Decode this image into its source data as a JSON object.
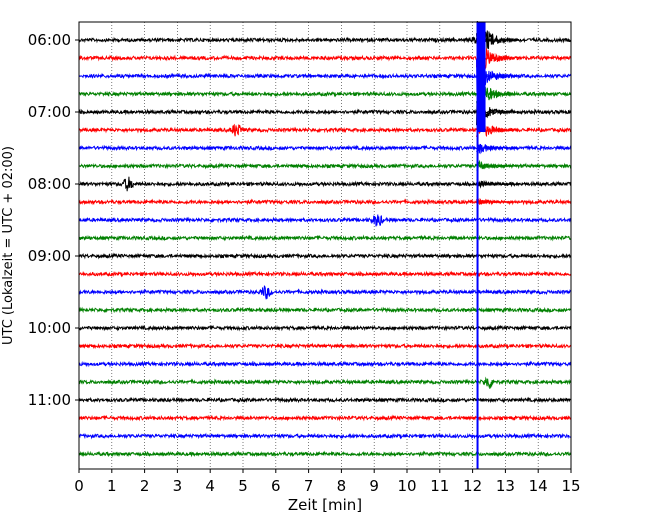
{
  "chart_data": {
    "type": "line",
    "subtype": "helicorder",
    "xlabel": "Zeit  [min]",
    "ylabel": "UTC (Lokalzeit = UTC + 02:00)",
    "xlim": [
      0,
      15
    ],
    "x_ticks": [
      "0",
      "1",
      "2",
      "3",
      "4",
      "5",
      "6",
      "7",
      "8",
      "9",
      "10",
      "11",
      "12",
      "13",
      "14",
      "15"
    ],
    "y_ticks": [
      "06:00",
      "07:00",
      "08:00",
      "09:00",
      "10:00",
      "11:00"
    ],
    "grid": "vertical dotted",
    "trace_interval_min": 15,
    "trace_colors": [
      "#000000",
      "#ff0000",
      "#0000ff",
      "#008000"
    ],
    "trace_start_times": [
      "06:00",
      "06:15",
      "06:30",
      "06:45",
      "07:00",
      "07:15",
      "07:30",
      "07:45",
      "08:00",
      "08:15",
      "08:30",
      "08:45",
      "09:00",
      "09:15",
      "09:30",
      "09:45",
      "10:00",
      "10:15",
      "10:30",
      "10:45",
      "11:00",
      "11:15",
      "11:30",
      "11:45"
    ],
    "events": [
      {
        "start": "06:00",
        "minute": 12.2,
        "note": "large earthquake arrival, saturated amplitude from 06:00 to 08:15 traces"
      },
      {
        "start": "07:15",
        "minute": 4.8,
        "note": "local burst"
      },
      {
        "start": "08:00",
        "minute": 1.5,
        "note": "small burst"
      },
      {
        "start": "08:30",
        "minute": 9.1,
        "note": "small burst"
      },
      {
        "start": "09:30",
        "minute": 5.7,
        "note": "small burst"
      },
      {
        "start": "10:45",
        "minute": 12.5,
        "note": "small burst"
      }
    ]
  }
}
